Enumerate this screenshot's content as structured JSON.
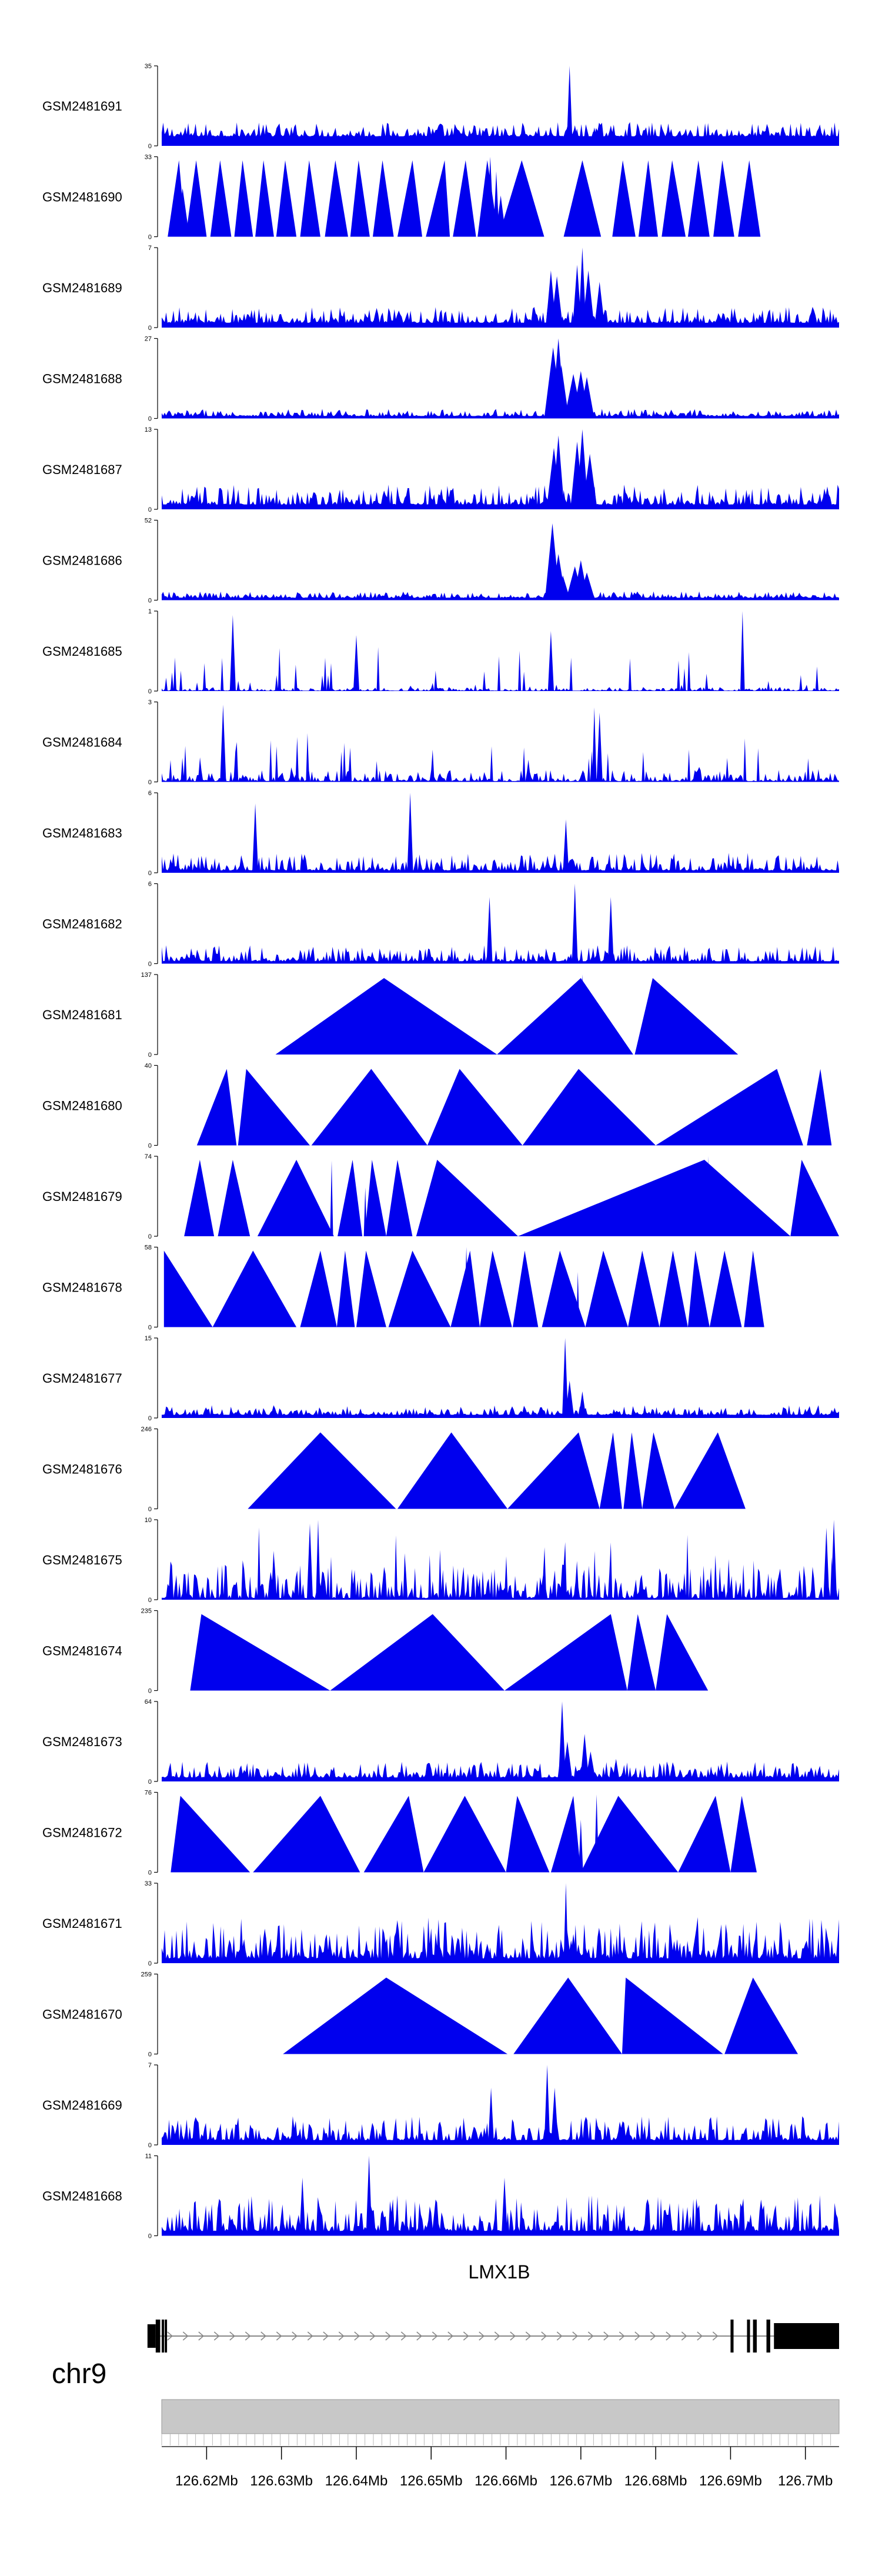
{
  "chart_data": {
    "type": "area",
    "chromosome": "chr9",
    "gene": {
      "name": "LMX1B",
      "strand": "+",
      "start_mb": 126.6132,
      "end_mb": 126.7045,
      "exons_mb": [
        [
          126.6132,
          126.6138
        ],
        [
          126.614,
          126.6142
        ],
        [
          126.6144,
          126.6146
        ],
        [
          126.69,
          126.6904
        ],
        [
          126.6922,
          126.6926
        ],
        [
          126.693,
          126.6935
        ],
        [
          126.6948,
          126.6953
        ],
        [
          126.6958,
          126.7045
        ]
      ]
    },
    "xlim_mb": [
      126.614,
      126.7045
    ],
    "axis_ticks": [
      "126.62Mb",
      "126.63Mb",
      "126.64Mb",
      "126.65Mb",
      "126.66Mb",
      "126.67Mb",
      "126.68Mb",
      "126.69Mb",
      "126.7Mb"
    ],
    "axis_tick_values_mb": [
      126.62,
      126.63,
      126.64,
      126.65,
      126.66,
      126.67,
      126.68,
      126.69,
      126.7
    ],
    "series": [
      {
        "name": "GSM2481691",
        "ymax": 35,
        "ymax_label": "35",
        "style": "dense",
        "baseline": 1.2,
        "noise": 1.8,
        "spikes": [
          [
            126.6685,
            35,
            0.0004
          ],
          [
            126.6692,
            9,
            0.0006
          ],
          [
            126.6718,
            8,
            0.0005
          ]
        ]
      },
      {
        "name": "GSM2481690",
        "ymax": 33,
        "ymax_label": "33",
        "style": "triangles",
        "peaks": [
          [
            126.6148,
            126.6163,
            126.6172
          ],
          [
            126.6172,
            126.6186,
            126.62
          ],
          [
            126.6205,
            126.6218,
            126.6233
          ],
          [
            126.6237,
            126.6248,
            126.6262
          ],
          [
            126.6265,
            126.6276,
            126.629
          ],
          [
            126.6293,
            126.6305,
            126.632
          ],
          [
            126.6325,
            126.6337,
            126.6352
          ],
          [
            126.6358,
            126.6372,
            126.6389
          ],
          [
            126.6392,
            126.6403,
            126.6418
          ],
          [
            126.6422,
            126.6435,
            126.645
          ],
          [
            126.6455,
            126.6475,
            126.6488
          ],
          [
            126.6493,
            126.6518,
            126.6525
          ],
          [
            126.6529,
            126.6546,
            126.656
          ],
          [
            126.6562,
            126.6575,
            126.659
          ],
          [
            126.659,
            126.6621,
            126.6651
          ],
          [
            126.6677,
            126.6702,
            126.6727
          ],
          [
            126.6742,
            126.6756,
            126.6773
          ],
          [
            126.6777,
            126.679,
            126.6803
          ],
          [
            126.6808,
            126.6822,
            126.684
          ],
          [
            126.6843,
            126.6857,
            126.6872
          ],
          [
            126.6877,
            126.6889,
            126.6905
          ],
          [
            126.691,
            126.6925,
            126.694
          ]
        ],
        "spikes": [
          [
            126.6168,
            20,
            0.0009
          ],
          [
            126.6518,
            10,
            0.0006
          ],
          [
            126.6579,
            33,
            0.0005
          ],
          [
            126.6587,
            27,
            0.0004
          ],
          [
            126.6593,
            17,
            0.0007
          ]
        ]
      },
      {
        "name": "GSM2481689",
        "ymax": 7,
        "ymax_label": "7",
        "style": "dense",
        "baseline": 0.6,
        "noise": 2.0,
        "spikes": [
          [
            126.666,
            5,
            0.0007
          ],
          [
            126.6668,
            4.5,
            0.0008
          ],
          [
            126.6695,
            5.5,
            0.0006
          ],
          [
            126.6702,
            7,
            0.0005
          ],
          [
            126.671,
            5,
            0.0008
          ],
          [
            126.6725,
            4,
            0.0007
          ]
        ]
      },
      {
        "name": "GSM2481688",
        "ymax": 27,
        "ymax_label": "27",
        "style": "dense",
        "baseline": 0.3,
        "noise": 0.9,
        "spikes": [
          [
            126.6663,
            24,
            0.0012
          ],
          [
            126.667,
            27,
            0.0009
          ],
          [
            126.6674,
            18,
            0.001
          ],
          [
            126.669,
            15,
            0.0012
          ],
          [
            126.67,
            16,
            0.0011
          ],
          [
            126.6708,
            14,
            0.001
          ]
        ]
      },
      {
        "name": "GSM2481687",
        "ymax": 13,
        "ymax_label": "13",
        "style": "dense",
        "baseline": 0.6,
        "noise": 2.5,
        "spikes": [
          [
            126.6664,
            10,
            0.001
          ],
          [
            126.667,
            12,
            0.0008
          ],
          [
            126.6695,
            11,
            0.0009
          ],
          [
            126.6702,
            13,
            0.0008
          ],
          [
            126.6712,
            9,
            0.001
          ]
        ]
      },
      {
        "name": "GSM2481686",
        "ymax": 52,
        "ymax_label": "52",
        "style": "dense",
        "baseline": 0.3,
        "noise": 0.8,
        "spikes": [
          [
            126.6662,
            50,
            0.001
          ],
          [
            126.667,
            30,
            0.001
          ],
          [
            126.6676,
            16,
            0.001
          ],
          [
            126.6692,
            22,
            0.0012
          ],
          [
            126.67,
            26,
            0.001
          ],
          [
            126.6708,
            18,
            0.0011
          ]
        ]
      },
      {
        "name": "GSM2481685",
        "ymax": 1,
        "ymax_label": "1",
        "style": "spiky",
        "baseline": 0.05,
        "noise": 0.45,
        "spikes": [
          [
            126.6235,
            0.95,
            0.0004
          ],
          [
            126.64,
            0.7,
            0.0004
          ],
          [
            126.666,
            0.75,
            0.0004
          ],
          [
            126.6916,
            1.0,
            0.0003
          ]
        ]
      },
      {
        "name": "GSM2481684",
        "ymax": 3,
        "ymax_label": "3",
        "style": "spiky",
        "baseline": 0.1,
        "noise": 1.4,
        "spikes": [
          [
            126.6222,
            2.9,
            0.0004
          ],
          [
            126.6718,
            2.8,
            0.0003
          ],
          [
            126.6725,
            2.6,
            0.0004
          ]
        ]
      },
      {
        "name": "GSM2481683",
        "ymax": 6,
        "ymax_label": "6",
        "style": "dense",
        "baseline": 0.3,
        "noise": 2.2,
        "spikes": [
          [
            126.6265,
            5.2,
            0.0004
          ],
          [
            126.6472,
            6,
            0.0004
          ],
          [
            126.668,
            4,
            0.0004
          ]
        ]
      },
      {
        "name": "GSM2481682",
        "ymax": 6,
        "ymax_label": "6",
        "style": "dense",
        "baseline": 0.3,
        "noise": 2.0,
        "spikes": [
          [
            126.6578,
            5,
            0.0004
          ],
          [
            126.6692,
            6,
            0.0004
          ],
          [
            126.674,
            5,
            0.0004
          ]
        ]
      },
      {
        "name": "GSM2481681",
        "ymax": 137,
        "ymax_label": "137",
        "style": "triangles",
        "peaks": [
          [
            126.6292,
            126.6437,
            126.6588
          ],
          [
            126.6588,
            126.67,
            126.677
          ],
          [
            126.6772,
            126.6796,
            126.691
          ]
        ],
        "spikes": [
          [
            126.6702,
            137,
            0.0004
          ],
          [
            126.679,
            60,
            0.0003
          ],
          [
            126.68,
            55,
            0.0003
          ]
        ]
      },
      {
        "name": "GSM2481680",
        "ymax": 40,
        "ymax_label": "40",
        "style": "triangles",
        "peaks": [
          [
            126.6187,
            126.6227,
            126.624
          ],
          [
            126.6242,
            126.6253,
            126.6338
          ],
          [
            126.634,
            126.642,
            126.6495
          ],
          [
            126.6495,
            126.6538,
            126.6622
          ],
          [
            126.6622,
            126.6697,
            126.68
          ],
          [
            126.68,
            126.6962,
            126.6997
          ],
          [
            126.7002,
            126.702,
            126.7035
          ]
        ],
        "spikes": []
      },
      {
        "name": "GSM2481679",
        "ymax": 74,
        "ymax_label": "74",
        "style": "triangles",
        "peaks": [
          [
            126.617,
            126.6191,
            126.621
          ],
          [
            126.6215,
            126.6235,
            126.6258
          ],
          [
            126.6268,
            126.632,
            126.637
          ],
          [
            126.6375,
            126.6395,
            126.6408
          ],
          [
            126.6411,
            126.6421,
            126.644
          ],
          [
            126.644,
            126.6455,
            126.6475
          ],
          [
            126.648,
            126.6508,
            126.6616
          ],
          [
            126.6616,
            126.6865,
            126.698
          ],
          [
            126.698,
            126.6995,
            126.7045
          ]
        ],
        "spikes": [
          [
            126.6367,
            70,
            0.0002
          ],
          [
            126.6412,
            45,
            0.0002
          ],
          [
            126.6421,
            46,
            0.0002
          ],
          [
            126.687,
            74,
            0.0002
          ],
          [
            126.6882,
            60,
            0.0002
          ]
        ]
      },
      {
        "name": "GSM2481678",
        "ymax": 58,
        "ymax_label": "58",
        "style": "triangles",
        "peaks": [
          [
            126.6143,
            126.6143,
            126.6208
          ],
          [
            126.6208,
            126.6262,
            126.632
          ],
          [
            126.6325,
            126.6352,
            126.6374
          ],
          [
            126.6374,
            126.6385,
            126.6398
          ],
          [
            126.64,
            126.6413,
            126.644
          ],
          [
            126.6443,
            126.6475,
            126.6526
          ],
          [
            126.6526,
            126.6552,
            126.6565
          ],
          [
            126.6565,
            126.6582,
            126.6608
          ],
          [
            126.6609,
            126.6625,
            126.6643
          ],
          [
            126.6648,
            126.6672,
            126.6706
          ],
          [
            126.6706,
            126.673,
            126.6763
          ],
          [
            126.6763,
            126.6782,
            126.6805
          ],
          [
            126.6805,
            126.6823,
            126.6843
          ],
          [
            126.6843,
            126.6853,
            126.6872
          ],
          [
            126.6872,
            126.6892,
            126.6915
          ],
          [
            126.6918,
            126.693,
            126.6945
          ]
        ],
        "spikes": [
          [
            126.6547,
            58,
            0.0003
          ],
          [
            126.6696,
            40,
            0.0002
          ]
        ]
      },
      {
        "name": "GSM2481677",
        "ymax": 15,
        "ymax_label": "15",
        "style": "dense",
        "baseline": 0.4,
        "noise": 1.2,
        "spikes": [
          [
            126.6679,
            15,
            0.0004
          ],
          [
            126.6685,
            7,
            0.0006
          ],
          [
            126.6702,
            5,
            0.0005
          ]
        ]
      },
      {
        "name": "GSM2481676",
        "ymax": 246,
        "ymax_label": "246",
        "style": "triangles",
        "peaks": [
          [
            126.6255,
            126.6352,
            126.6453
          ],
          [
            126.6455,
            126.6527,
            126.6602
          ],
          [
            126.6602,
            126.6697,
            126.6725
          ],
          [
            126.6725,
            126.6743,
            126.6755
          ],
          [
            126.6757,
            126.6768,
            126.6782
          ],
          [
            126.6782,
            126.6797,
            126.6825
          ],
          [
            126.6825,
            126.6883,
            126.692
          ]
        ],
        "spikes": []
      },
      {
        "name": "GSM2481675",
        "ymax": 10,
        "ymax_label": "10",
        "style": "spiky",
        "baseline": 0.2,
        "noise": 4.2,
        "spikes": [
          [
            126.6338,
            9.5,
            0.0004
          ],
          [
            126.6349,
            10,
            0.0003
          ],
          [
            126.7038,
            10,
            0.0004
          ],
          [
            126.7028,
            9,
            0.0004
          ]
        ]
      },
      {
        "name": "GSM2481674",
        "ymax": 235,
        "ymax_label": "235",
        "style": "triangles",
        "peaks": [
          [
            126.6178,
            126.6193,
            126.6365
          ],
          [
            126.6365,
            126.6502,
            126.6598
          ],
          [
            126.6598,
            126.674,
            126.6762
          ],
          [
            126.6762,
            126.6776,
            126.68
          ],
          [
            126.68,
            126.6815,
            126.687
          ]
        ],
        "spikes": []
      },
      {
        "name": "GSM2481673",
        "ymax": 64,
        "ymax_label": "64",
        "style": "dense",
        "baseline": 0.5,
        "noise": 2.0,
        "spikes": [
          [
            126.6675,
            64,
            0.0005
          ],
          [
            126.6682,
            32,
            0.0007
          ],
          [
            126.6705,
            38,
            0.0006
          ],
          [
            126.6713,
            24,
            0.0007
          ],
          [
            126.6747,
            18,
            0.0005
          ]
        ]
      },
      {
        "name": "GSM2481672",
        "ymax": 76,
        "ymax_label": "76",
        "style": "triangles",
        "peaks": [
          [
            126.6152,
            126.6165,
            126.6258
          ],
          [
            126.6262,
            126.6352,
            126.6405
          ],
          [
            126.641,
            126.647,
            126.649
          ],
          [
            126.649,
            126.6545,
            126.66
          ],
          [
            126.66,
            126.6615,
            126.6658
          ],
          [
            126.666,
            126.669,
            126.67
          ],
          [
            126.67,
            126.675,
            126.683
          ],
          [
            126.683,
            126.688,
            126.69
          ],
          [
            126.69,
            126.6915,
            126.6935
          ]
        ],
        "spikes": [
          [
            126.669,
            72,
            0.0003
          ],
          [
            126.67,
            50,
            0.0003
          ],
          [
            126.6721,
            74,
            0.0003
          ]
        ]
      },
      {
        "name": "GSM2481671",
        "ymax": 33,
        "ymax_label": "33",
        "style": "triangles",
        "peaks": [],
        "dense_overlay": true,
        "baseline": 0.6,
        "noise": 5.0,
        "spikes": [
          [
            126.668,
            33,
            0.0003
          ],
          [
            126.6575,
            8,
            0.0006
          ],
          [
            126.669,
            12,
            0.0005
          ]
        ]
      },
      {
        "name": "GSM2481670",
        "ymax": 259,
        "ymax_label": "259",
        "style": "triangles",
        "peaks": [
          [
            126.6302,
            126.644,
            126.6602
          ],
          [
            126.661,
            126.6683,
            126.6755
          ],
          [
            126.6755,
            126.676,
            126.689
          ],
          [
            126.6892,
            126.693,
            126.699
          ]
        ],
        "spikes": []
      },
      {
        "name": "GSM2481669",
        "ymax": 7,
        "ymax_label": "7",
        "style": "dense",
        "baseline": 0.6,
        "noise": 3.0,
        "spikes": [
          [
            126.6655,
            7,
            0.0004
          ],
          [
            126.6665,
            5,
            0.0005
          ],
          [
            126.658,
            5,
            0.0004
          ]
        ]
      },
      {
        "name": "GSM2481668",
        "ymax": 11,
        "ymax_label": "11",
        "style": "dense",
        "baseline": 0.6,
        "noise": 4.5,
        "spikes": [
          [
            126.6417,
            11,
            0.0004
          ],
          [
            126.6328,
            8,
            0.0004
          ],
          [
            126.6598,
            8,
            0.0004
          ]
        ]
      }
    ],
    "colors": {
      "signal": "#0000ee",
      "axis": "#000000",
      "ideogram": "#c8c8c8",
      "gene": "#000000"
    }
  }
}
